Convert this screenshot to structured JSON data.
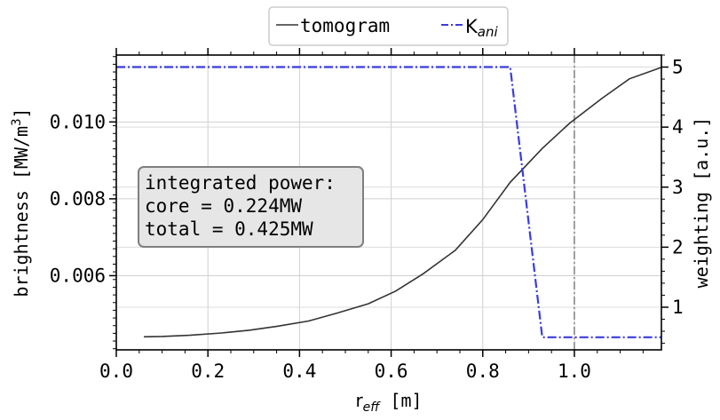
{
  "chart_data": {
    "type": "line",
    "xlabel": {
      "base": "r",
      "sub": "eff",
      "unit": " [m]"
    },
    "ylabel_left": {
      "pre": "brightness [MW/m",
      "sup": "3",
      "post": "]"
    },
    "ylabel_right": "weighting [a.u.]",
    "xlim": [
      0.0,
      1.19
    ],
    "ylim_left": [
      0.00407,
      0.01174
    ],
    "ylim_right": [
      0.29,
      5.2
    ],
    "x_ticks": [
      0.0,
      0.2,
      0.4,
      0.6,
      0.8,
      1.0
    ],
    "x_tick_labels": [
      "0.0",
      "0.2",
      "0.4",
      "0.6",
      "0.8",
      "1.0"
    ],
    "y_left_ticks": [
      0.006,
      0.008,
      0.01
    ],
    "y_left_tick_labels": [
      "0.006",
      "0.008",
      "0.010"
    ],
    "y_right_ticks": [
      1,
      2,
      3,
      4,
      5
    ],
    "y_right_tick_labels": [
      "1",
      "2",
      "3",
      "4",
      "5"
    ],
    "grid": true,
    "legend_position": "top-center (outside)",
    "vline_x": 1.0,
    "series": [
      {
        "name": "tomogram",
        "axis": "left",
        "color": "#333333",
        "style": "solid",
        "x": [
          0.06,
          0.1,
          0.16,
          0.23,
          0.29,
          0.35,
          0.42,
          0.48,
          0.55,
          0.61,
          0.67,
          0.74,
          0.8,
          0.86,
          0.93,
          0.99,
          1.06,
          1.12,
          1.19
        ],
        "y": [
          0.00441,
          0.00442,
          0.00445,
          0.00451,
          0.00458,
          0.00468,
          0.00482,
          0.00502,
          0.00527,
          0.0056,
          0.00605,
          0.00666,
          0.00746,
          0.00843,
          0.00931,
          0.00997,
          0.01061,
          0.01112,
          0.01142
        ]
      },
      {
        "name": "Kani",
        "name_base": "K",
        "name_sub": "ani",
        "axis": "right",
        "color": "#3b3bdf",
        "style": "dashdot",
        "x": [
          0.0,
          0.86,
          0.93,
          1.19
        ],
        "y": [
          5.0,
          5.0,
          0.5,
          0.5
        ]
      }
    ],
    "annotation": {
      "lines": [
        "integrated power:",
        "core = 0.224MW",
        "total = 0.425MW"
      ]
    }
  }
}
